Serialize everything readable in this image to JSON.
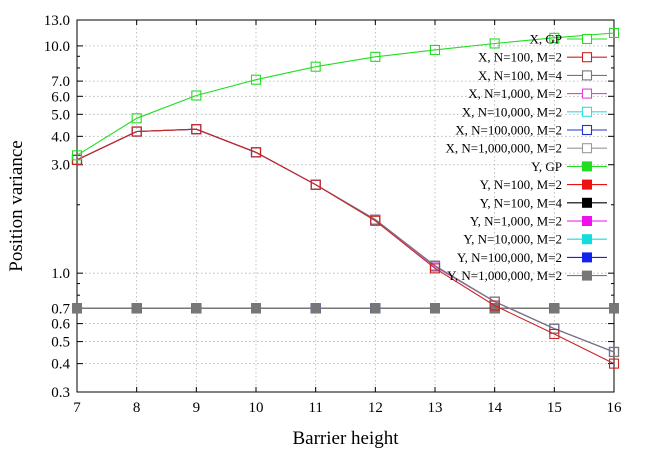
{
  "chart_data": {
    "type": "line",
    "xlabel": "Barrier height",
    "ylabel": "Position variance",
    "xlim": [
      7,
      16
    ],
    "ylim": [
      0.3,
      13.0
    ],
    "yscale": "log",
    "grid": true,
    "legend_position": "right",
    "x": [
      7,
      8,
      9,
      10,
      11,
      12,
      13,
      14,
      15,
      16
    ],
    "x_ticks": [
      "7",
      "8",
      "9",
      "10",
      "11",
      "12",
      "13",
      "14",
      "15",
      "16"
    ],
    "y_ticks": [
      {
        "value": 0.3,
        "label": "0.3"
      },
      {
        "value": 0.4,
        "label": "0.4"
      },
      {
        "value": 0.5,
        "label": "0.5"
      },
      {
        "value": 0.6,
        "label": "0.6"
      },
      {
        "value": 0.7,
        "label": "0.7"
      },
      {
        "value": 1.0,
        "label": "1.0"
      },
      {
        "value": 3.0,
        "label": "3.0"
      },
      {
        "value": 4.0,
        "label": "4.0"
      },
      {
        "value": 5.0,
        "label": "5.0"
      },
      {
        "value": 6.0,
        "label": "6.0"
      },
      {
        "value": 7.0,
        "label": "7.0"
      },
      {
        "value": 10.0,
        "label": "10.0"
      },
      {
        "value": 13.0,
        "label": "13.0"
      }
    ],
    "series": [
      {
        "name": "X, GP",
        "color": "#22dd22",
        "marker": "open-square",
        "values": [
          3.3,
          4.8,
          6.05,
          7.1,
          8.1,
          8.95,
          9.6,
          10.25,
          10.85,
          11.4
        ]
      },
      {
        "name": "X, N=100, M=2",
        "color": "#cc2222",
        "marker": "open-square",
        "values": [
          3.15,
          4.2,
          4.3,
          3.4,
          2.45,
          1.7,
          1.05,
          0.72,
          0.54,
          0.4
        ]
      },
      {
        "name": "X, N=100, M=4",
        "color": "#777777",
        "marker": "open-square",
        "values": [
          3.15,
          4.2,
          4.3,
          3.4,
          2.45,
          1.72,
          1.08,
          0.75,
          0.57,
          0.45
        ]
      },
      {
        "name": "X, N=1,000, M=2",
        "color": "#dd44dd",
        "marker": "open-square",
        "values": [
          3.15,
          4.2,
          4.3,
          3.4,
          2.45,
          1.72,
          1.07,
          0.75,
          0.57,
          0.45
        ]
      },
      {
        "name": "X, N=10,000, M=2",
        "color": "#33dddd",
        "marker": "open-square",
        "values": [
          3.15,
          4.2,
          4.3,
          3.4,
          2.45,
          1.72,
          1.07,
          0.75,
          0.57,
          0.45
        ]
      },
      {
        "name": "X, N=100,000, M=2",
        "color": "#2233cc",
        "marker": "open-square",
        "values": [
          3.15,
          4.2,
          4.3,
          3.4,
          2.45,
          1.72,
          1.07,
          0.75,
          0.57,
          0.45
        ]
      },
      {
        "name": "X, N=1,000,000, M=2",
        "color": "#999999",
        "marker": "open-square",
        "values": [
          3.15,
          4.2,
          4.3,
          3.4,
          2.45,
          1.72,
          1.07,
          0.75,
          0.57,
          0.45
        ]
      },
      {
        "name": "Y, GP",
        "color": "#22dd22",
        "marker": "filled-square",
        "values": [
          0.7,
          0.7,
          0.7,
          0.7,
          0.7,
          0.7,
          0.7,
          0.7,
          0.7,
          0.7
        ]
      },
      {
        "name": "Y, N=100, M=2",
        "color": "#ee1111",
        "marker": "filled-square",
        "values": [
          0.7,
          0.7,
          0.7,
          0.7,
          0.7,
          0.7,
          0.7,
          0.7,
          0.7,
          0.7
        ]
      },
      {
        "name": "Y, N=100, M=4",
        "color": "#000000",
        "marker": "filled-square",
        "values": [
          0.7,
          0.7,
          0.7,
          0.7,
          0.7,
          0.7,
          0.7,
          0.7,
          0.7,
          0.7
        ]
      },
      {
        "name": "Y, N=1,000, M=2",
        "color": "#ee11ee",
        "marker": "filled-square",
        "values": [
          0.7,
          0.7,
          0.7,
          0.7,
          0.7,
          0.7,
          0.7,
          0.7,
          0.7,
          0.7
        ]
      },
      {
        "name": "Y, N=10,000, M=2",
        "color": "#11dddd",
        "marker": "filled-square",
        "values": [
          0.7,
          0.7,
          0.7,
          0.7,
          0.7,
          0.7,
          0.7,
          0.7,
          0.7,
          0.7
        ]
      },
      {
        "name": "Y, N=100,000, M=2",
        "color": "#1122ee",
        "marker": "filled-square",
        "values": [
          0.7,
          0.7,
          0.7,
          0.7,
          0.7,
          0.7,
          0.7,
          0.7,
          0.7,
          0.7
        ]
      },
      {
        "name": "Y, N=1,000,000, M=2",
        "color": "#777777",
        "marker": "filled-square",
        "values": [
          0.7,
          0.7,
          0.7,
          0.7,
          0.7,
          0.7,
          0.7,
          0.7,
          0.7,
          0.7
        ]
      }
    ]
  }
}
